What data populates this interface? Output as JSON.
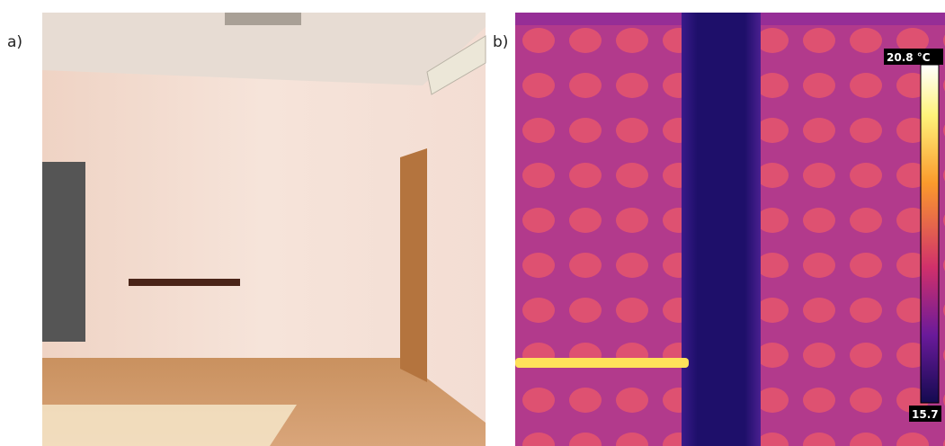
{
  "panels": [
    {
      "label": "a)"
    },
    {
      "label": "b)",
      "scale": {
        "max_label": "20.8 °C",
        "min_label": "15.7"
      }
    }
  ]
}
